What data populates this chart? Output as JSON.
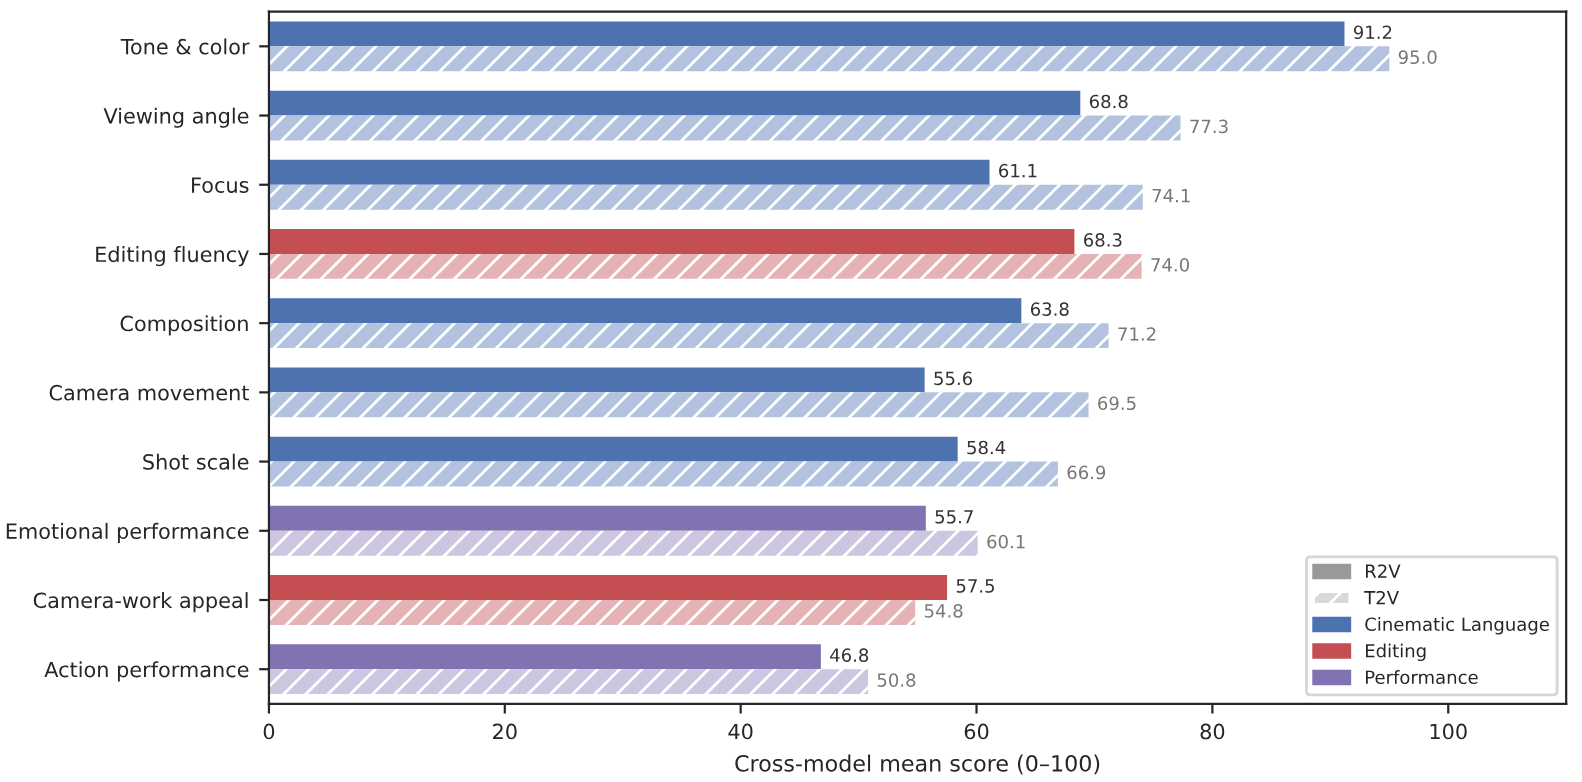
{
  "chart_data": {
    "type": "bar",
    "orientation": "horizontal",
    "xlabel": "Cross-model mean score (0–100)",
    "categories": [
      "Tone & color",
      "Viewing angle",
      "Focus",
      "Editing fluency",
      "Composition",
      "Camera movement",
      "Shot scale",
      "Emotional performance",
      "Camera-work appeal",
      "Action performance"
    ],
    "series": [
      {
        "name": "R2V",
        "color": "#999999",
        "colors": [
          "#4c72b0",
          "#4c72b0",
          "#4c72b0",
          "#c44e52",
          "#4c72b0",
          "#4c72b0",
          "#4c72b0",
          "#8172b2",
          "#c44e52",
          "#8172b2"
        ],
        "values": [
          91.2,
          68.8,
          61.1,
          68.3,
          63.8,
          55.6,
          58.4,
          55.7,
          57.5,
          46.8
        ],
        "value_labels": [
          "91.2",
          "68.8",
          "61.1",
          "68.3",
          "63.8",
          "55.6",
          "58.4",
          "55.7",
          "57.5",
          "46.8"
        ]
      },
      {
        "name": "T2V",
        "color": "#d9d9d9",
        "colors": [
          "#b3c3df",
          "#b3c3df",
          "#b3c3df",
          "#e5b3b5",
          "#b3c3df",
          "#b3c3df",
          "#b3c3df",
          "#cdc6e0",
          "#e5b3b5",
          "#cdc6e0"
        ],
        "values": [
          95.0,
          77.3,
          74.1,
          74.0,
          71.2,
          69.5,
          66.9,
          60.1,
          54.8,
          50.8
        ],
        "value_labels": [
          "95.0",
          "77.3",
          "74.1",
          "74.0",
          "71.2",
          "69.5",
          "66.9",
          "60.1",
          "54.8",
          "50.8"
        ]
      },
      {
        "name": "Cinematic Language",
        "color": "#4c72b0",
        "values": [
          null,
          null,
          null,
          null,
          null,
          null,
          null,
          null,
          null,
          null
        ]
      },
      {
        "name": "Editing",
        "color": "#c44e52",
        "values": [
          null,
          null,
          null,
          null,
          null,
          null,
          null,
          null,
          null,
          null
        ]
      },
      {
        "name": "Performance",
        "color": "#8172b2",
        "values": [
          null,
          null,
          null,
          null,
          null,
          null,
          null,
          null,
          null,
          null
        ]
      }
    ],
    "xlim": [
      0,
      110
    ],
    "xticks": [
      0,
      20,
      40,
      60,
      80,
      100
    ],
    "grid": false,
    "legend": "bottom right"
  }
}
